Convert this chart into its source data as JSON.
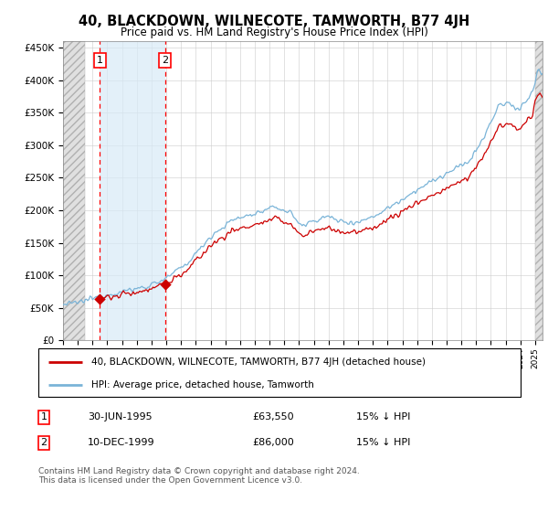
{
  "title": "40, BLACKDOWN, WILNECOTE, TAMWORTH, B77 4JH",
  "subtitle": "Price paid vs. HM Land Registry's House Price Index (HPI)",
  "legend_line1": "40, BLACKDOWN, WILNECOTE, TAMWORTH, B77 4JH (detached house)",
  "legend_line2": "HPI: Average price, detached house, Tamworth",
  "purchase1_date": "30-JUN-1995",
  "purchase1_price": 63550,
  "purchase1_note": "15% ↓ HPI",
  "purchase2_date": "10-DEC-1999",
  "purchase2_price": 86000,
  "purchase2_note": "15% ↓ HPI",
  "footer": "Contains HM Land Registry data © Crown copyright and database right 2024.\nThis data is licensed under the Open Government Licence v3.0.",
  "hpi_color": "#7ab4d8",
  "price_color": "#cc0000",
  "ylim": [
    0,
    460000
  ],
  "xlim_start": 1993.0,
  "xlim_end": 2025.5,
  "hatch_left_end": 1994.5,
  "hatch_right_start": 2025.0,
  "purchase1_x": 1995.5,
  "purchase2_x": 1999.92,
  "yticks": [
    0,
    50000,
    100000,
    150000,
    200000,
    250000,
    300000,
    350000,
    400000,
    450000
  ],
  "ylabels": [
    "£0",
    "£50K",
    "£100K",
    "£150K",
    "£200K",
    "£250K",
    "£300K",
    "£350K",
    "£400K",
    "£450K"
  ]
}
